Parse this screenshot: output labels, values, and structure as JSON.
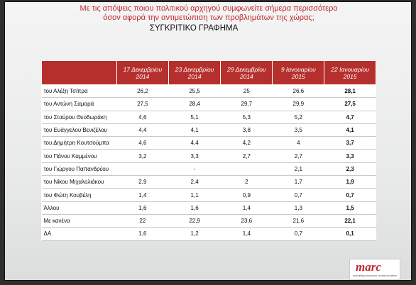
{
  "header": {
    "title_lines": [
      "Με τις απόψεις ποιου πολιτικού αρχηγού συμφωνείτε σήμερα περισσότερο",
      "όσον αφορά την αντιμετώπιση των προβλημάτων της χώρας;"
    ],
    "subtitle": "ΣΥΓΚΡΙΤΙΚΟ ΓΡΑΦΗΜΑ"
  },
  "table": {
    "columns": [
      "17 Δεκεμβρίου 2014",
      "23 Δεκεμβρίου 2014",
      "29 Δεκεμβρίου 2014",
      "9 Ιανουαρίου 2015",
      "22 Ιανουαρίου 2015"
    ],
    "rows": [
      [
        "του Αλέξη Τσίπρα",
        "26,2",
        "25,5",
        "25",
        "26,6",
        "28,1"
      ],
      [
        "του Αντώνη Σαμαρά",
        "27,5",
        "28,4",
        "29,7",
        "29,9",
        "27,5"
      ],
      [
        "του Σταύρου Θεοδωράκη",
        "4,6",
        "5,1",
        "5,3",
        "5,2",
        "4,7"
      ],
      [
        "του  Ευάγγελου Βενιζέλου",
        "4,4",
        "4,1",
        "3,8",
        "3,5",
        "4,1"
      ],
      [
        "του Δημήτρη Κουτσούμπα",
        "4,6",
        "4,4",
        "4,2",
        "4",
        "3,7"
      ],
      [
        "του Πάνου Καμμένου",
        "3,2",
        "3,3",
        "2,7",
        "2,7",
        "3,3"
      ],
      [
        "του Γιώργου Παπανδρέου",
        null,
        "-",
        null,
        "2,1",
        "2,3"
      ],
      [
        "του Νίκου Μιχαλολιάκου",
        "2,9",
        "2,4",
        "2",
        "1,7",
        "1,9"
      ],
      [
        "του Φώτη Κουβέλη",
        "1,4",
        "1,1",
        "0,9",
        "0,7",
        "0,7"
      ],
      [
        "Άλλου",
        "1,6",
        "1,6",
        "1,4",
        "1,3",
        "1,5"
      ],
      [
        "Με κανένα",
        "22",
        "22,9",
        "23,6",
        "21,6",
        "22,1"
      ],
      [
        "ΔΑ",
        "1,6",
        "1,2",
        "1,4",
        "0,7",
        "0,1"
      ]
    ]
  },
  "logo": {
    "word": "marc",
    "tagline": "marketing research communication"
  }
}
